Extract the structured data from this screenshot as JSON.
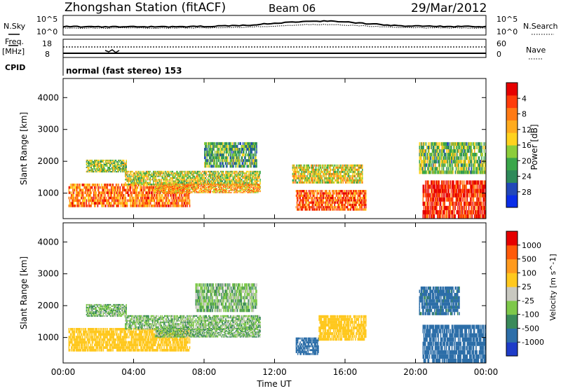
{
  "header": {
    "station": "Zhongshan Station (fitACF)",
    "beam": "Beam 06",
    "date": "29/Mar/2012"
  },
  "top_panels": {
    "nsky_label": "N.Sky",
    "nsearch_label": "N.Search",
    "left_ticks": [
      "10^5",
      "10^0"
    ],
    "right_ticks": [
      "10^5",
      "10^0"
    ],
    "freq_label_line1": "Freq.",
    "freq_label_line2": "[MHz]",
    "freq_ticks": [
      "18",
      "8"
    ],
    "nave_ticks": [
      "60",
      "0"
    ],
    "nave_label": "Nave",
    "cpid_label": "CPID",
    "cpid_text": "normal (fast stereo) 153"
  },
  "chart_data": [
    {
      "type": "heatmap",
      "title": "",
      "panel": "power",
      "xlabel": "Time UT",
      "ylabel": "Slant Range [km]",
      "xlim": [
        "00:00",
        "24:00"
      ],
      "x_ticks": [
        "00:00",
        "04:00",
        "08:00",
        "12:00",
        "16:00",
        "20:00",
        "00:00"
      ],
      "ylim": [
        200,
        4600
      ],
      "y_ticks": [
        1000,
        2000,
        3000,
        4000
      ],
      "colorbar_label": "Power [dB]",
      "colorbar_ticks": [
        "4",
        "8",
        "12",
        "16",
        "20",
        "24",
        "28"
      ],
      "colorbar_colors": [
        "#0a2de8",
        "#2248b8",
        "#2e8a5a",
        "#3aa64a",
        "#8ccd3a",
        "#ffd21e",
        "#ffab1e",
        "#ff7a14",
        "#ff3c0a",
        "#e60000"
      ],
      "echo_regions": [
        {
          "t0": 0.3,
          "t1": 7.2,
          "r0": 560,
          "r1": 1300,
          "level": 0.75
        },
        {
          "t0": 1.3,
          "t1": 3.6,
          "r0": 1650,
          "r1": 2050,
          "level": 0.45
        },
        {
          "t0": 3.5,
          "t1": 11.2,
          "r0": 1250,
          "r1": 1700,
          "level": 0.5
        },
        {
          "t0": 5.2,
          "t1": 11.2,
          "r0": 1000,
          "r1": 1300,
          "level": 0.65
        },
        {
          "t0": 8.0,
          "t1": 11.0,
          "r0": 1800,
          "r1": 2600,
          "level": 0.35
        },
        {
          "t0": 13.2,
          "t1": 17.2,
          "r0": 450,
          "r1": 1100,
          "level": 0.8
        },
        {
          "t0": 13.0,
          "t1": 17.0,
          "r0": 1300,
          "r1": 1900,
          "level": 0.55
        },
        {
          "t0": 20.4,
          "t1": 24.0,
          "r0": 200,
          "r1": 1400,
          "level": 0.9
        },
        {
          "t0": 20.2,
          "t1": 24.0,
          "r0": 1600,
          "r1": 2600,
          "level": 0.4
        }
      ]
    },
    {
      "type": "heatmap",
      "title": "",
      "panel": "velocity",
      "xlabel": "Time UT",
      "ylabel": "Slant Range [km]",
      "xlim": [
        "00:00",
        "24:00"
      ],
      "x_ticks": [
        "00:00",
        "04:00",
        "08:00",
        "12:00",
        "16:00",
        "20:00",
        "00:00"
      ],
      "ylim": [
        200,
        4600
      ],
      "y_ticks": [
        1000,
        2000,
        3000,
        4000
      ],
      "colorbar_label": "Velocity [m s^-1]",
      "colorbar_ticks": [
        "1000",
        "500",
        "100",
        "25",
        "-25",
        "-100",
        "-500",
        "-1000"
      ],
      "colorbar_colors": [
        "#1e3cc8",
        "#2d6ea8",
        "#3a8a5a",
        "#7ec84a",
        "#c8c8c0",
        "#ffc81e",
        "#ff9a1e",
        "#ff5a0a",
        "#e60000"
      ],
      "echo_regions": [
        {
          "t0": 0.3,
          "t1": 7.2,
          "r0": 560,
          "r1": 1300,
          "velocity": -200
        },
        {
          "t0": 1.3,
          "t1": 3.6,
          "r0": 1650,
          "r1": 2050,
          "velocity": 0
        },
        {
          "t0": 3.5,
          "t1": 11.2,
          "r0": 1250,
          "r1": 1700,
          "velocity": 0
        },
        {
          "t0": 5.2,
          "t1": 11.2,
          "r0": 1000,
          "r1": 1300,
          "velocity": 10
        },
        {
          "t0": 7.5,
          "t1": 11.0,
          "r0": 1800,
          "r1": 2700,
          "velocity": 0
        },
        {
          "t0": 13.2,
          "t1": 14.5,
          "r0": 450,
          "r1": 1000,
          "velocity": 200
        },
        {
          "t0": 14.5,
          "t1": 17.2,
          "r0": 900,
          "r1": 1700,
          "velocity": -300
        },
        {
          "t0": 20.4,
          "t1": 24.0,
          "r0": 200,
          "r1": 1400,
          "velocity": 200
        },
        {
          "t0": 20.2,
          "t1": 22.5,
          "r0": 1700,
          "r1": 2600,
          "velocity": 150
        }
      ]
    }
  ]
}
